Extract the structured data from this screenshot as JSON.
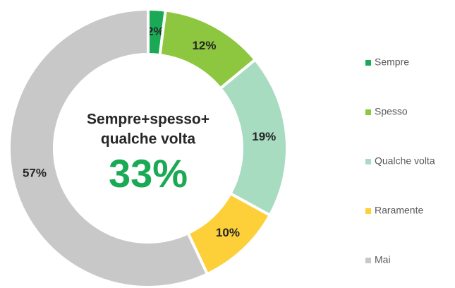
{
  "chart_data": {
    "type": "donut",
    "categories": [
      "Sempre",
      "Spesso",
      "Qualche volta",
      "Raramente",
      "Mai"
    ],
    "values": [
      2,
      12,
      19,
      10,
      57
    ],
    "value_labels": [
      "2%",
      "12%",
      "19%",
      "10%",
      "57%"
    ],
    "colors": [
      "#1aaa55",
      "#8dc63f",
      "#a8dcc0",
      "#fdd03a",
      "#c8c8c8"
    ],
    "center_text": [
      "Sempre+spesso+",
      "qualche volta"
    ],
    "center_value": {
      "value": 33,
      "label": "33%"
    },
    "legend": "right"
  }
}
